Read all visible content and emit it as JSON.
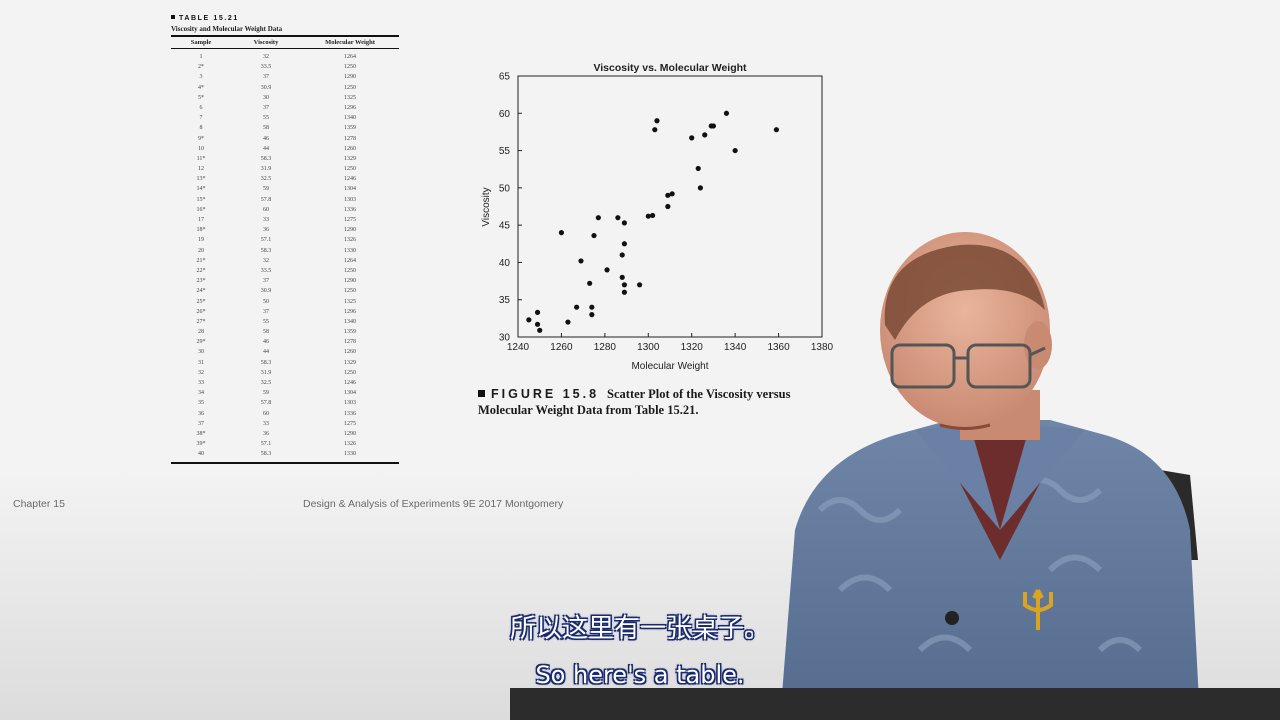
{
  "table": {
    "title": "TABLE 15.21",
    "subtitle": "Viscosity and Molecular Weight Data",
    "headers": [
      "Sample",
      "Viscosity",
      "Molecular Weight"
    ],
    "rows": [
      [
        "1",
        "32",
        "1264"
      ],
      [
        "2*",
        "33.5",
        "1250"
      ],
      [
        "3",
        "37",
        "1290"
      ],
      [
        "4*",
        "30.9",
        "1250"
      ],
      [
        "5*",
        "30",
        "1325"
      ],
      [
        "6",
        "37",
        "1296"
      ],
      [
        "7",
        "55",
        "1340"
      ],
      [
        "8",
        "58",
        "1359"
      ],
      [
        "9*",
        "46",
        "1278"
      ],
      [
        "10",
        "44",
        "1260"
      ],
      [
        "11*",
        "58.3",
        "1329"
      ],
      [
        "12",
        "31.9",
        "1250"
      ],
      [
        "13*",
        "32.5",
        "1246"
      ],
      [
        "14*",
        "59",
        "1304"
      ],
      [
        "15*",
        "57.8",
        "1303"
      ],
      [
        "16*",
        "60",
        "1336"
      ],
      [
        "17",
        "33",
        "1275"
      ],
      [
        "18*",
        "36",
        "1290"
      ],
      [
        "19",
        "57.1",
        "1326"
      ],
      [
        "20",
        "58.3",
        "1330"
      ],
      [
        "21*",
        "32",
        "1264"
      ],
      [
        "22*",
        "33.5",
        "1250"
      ],
      [
        "23*",
        "37",
        "1290"
      ],
      [
        "24*",
        "30.9",
        "1250"
      ],
      [
        "25*",
        "50",
        "1325"
      ],
      [
        "26*",
        "37",
        "1296"
      ],
      [
        "27*",
        "55",
        "1340"
      ],
      [
        "28",
        "58",
        "1359"
      ],
      [
        "29*",
        "46",
        "1278"
      ],
      [
        "30",
        "44",
        "1260"
      ],
      [
        "31",
        "58.3",
        "1329"
      ],
      [
        "32",
        "31.9",
        "1250"
      ],
      [
        "33",
        "32.5",
        "1246"
      ],
      [
        "34",
        "59",
        "1304"
      ],
      [
        "35",
        "57.8",
        "1303"
      ],
      [
        "36",
        "60",
        "1336"
      ],
      [
        "37",
        "33",
        "1275"
      ],
      [
        "38*",
        "36",
        "1290"
      ],
      [
        "39*",
        "57.1",
        "1326"
      ],
      [
        "40",
        "58.3",
        "1330"
      ]
    ]
  },
  "chart_data": {
    "type": "scatter",
    "title": "Viscosity vs. Molecular Weight",
    "xlabel": "Molecular Weight",
    "ylabel": "Viscosity",
    "xlim": [
      1240,
      1380
    ],
    "ylim": [
      30,
      65
    ],
    "xticks": [
      1240,
      1260,
      1280,
      1300,
      1320,
      1340,
      1360,
      1380
    ],
    "yticks": [
      30,
      35,
      40,
      45,
      50,
      55,
      60,
      65
    ],
    "grid": false,
    "points": [
      [
        1245,
        32.3
      ],
      [
        1249,
        33.3
      ],
      [
        1249,
        31.7
      ],
      [
        1250,
        30.9
      ],
      [
        1260,
        44
      ],
      [
        1263,
        32
      ],
      [
        1267,
        34
      ],
      [
        1269,
        40.2
      ],
      [
        1273,
        37.2
      ],
      [
        1274,
        34
      ],
      [
        1274,
        33
      ],
      [
        1275,
        43.6
      ],
      [
        1277,
        46
      ],
      [
        1281,
        39
      ],
      [
        1286,
        46
      ],
      [
        1288,
        41
      ],
      [
        1288,
        38
      ],
      [
        1289,
        45.3
      ],
      [
        1289,
        42.5
      ],
      [
        1289,
        37
      ],
      [
        1289,
        36
      ],
      [
        1296,
        37
      ],
      [
        1300,
        46.2
      ],
      [
        1302,
        46.3
      ],
      [
        1303,
        57.8
      ],
      [
        1304,
        59
      ],
      [
        1309,
        47.5
      ],
      [
        1309,
        49
      ],
      [
        1311,
        49.2
      ],
      [
        1320,
        56.7
      ],
      [
        1323,
        52.6
      ],
      [
        1324,
        50
      ],
      [
        1326,
        57.1
      ],
      [
        1329,
        58.3
      ],
      [
        1330,
        58.3
      ],
      [
        1336,
        60
      ],
      [
        1340,
        55
      ],
      [
        1359,
        57.8
      ]
    ],
    "marker_color": "#111111"
  },
  "figure_caption": {
    "label": "FIGURE 15.8",
    "text": "Scatter Plot of the Viscosity versus Molecular Weight Data from Table 15.21."
  },
  "footer": {
    "left": "Chapter 15",
    "center": "Design & Analysis of Experiments 9E 2017 Montgomery"
  },
  "subtitles": {
    "chinese": "所以这里有一张桌子。",
    "english": "So here's a table.",
    "outline_color": "#1a2a6e"
  }
}
